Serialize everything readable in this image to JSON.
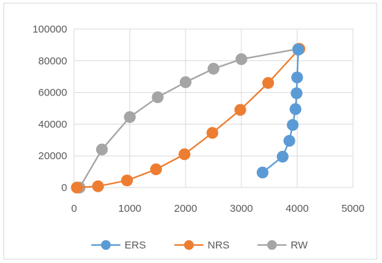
{
  "chart_data": {
    "type": "scatter",
    "title": "",
    "xlabel": "",
    "ylabel": "",
    "xlim": [
      0,
      5000
    ],
    "ylim": [
      0,
      100000
    ],
    "x_ticks": [
      0,
      1000,
      2000,
      3000,
      4000,
      5000
    ],
    "y_ticks": [
      0,
      20000,
      40000,
      60000,
      80000,
      100000
    ],
    "x_tick_labels": [
      "0",
      "1000",
      "2000",
      "3000",
      "4000",
      "5000"
    ],
    "y_tick_labels": [
      "0",
      "20000",
      "40000",
      "60000",
      "80000",
      "100000"
    ],
    "grid": true,
    "legend_position": "bottom",
    "series": [
      {
        "name": "ERS",
        "color": "#5b9bd5",
        "points": [
          {
            "x": 3380,
            "y": 9500
          },
          {
            "x": 3740,
            "y": 19500
          },
          {
            "x": 3860,
            "y": 29500
          },
          {
            "x": 3920,
            "y": 39500
          },
          {
            "x": 3970,
            "y": 49500
          },
          {
            "x": 3990,
            "y": 59500
          },
          {
            "x": 4000,
            "y": 69500
          },
          {
            "x": 4020,
            "y": 87000
          }
        ]
      },
      {
        "name": "NRS",
        "color": "#ed7d31",
        "points": [
          {
            "x": 50,
            "y": 0
          },
          {
            "x": 430,
            "y": 800
          },
          {
            "x": 950,
            "y": 4500
          },
          {
            "x": 1470,
            "y": 11500
          },
          {
            "x": 1980,
            "y": 21000
          },
          {
            "x": 2480,
            "y": 34500
          },
          {
            "x": 2980,
            "y": 49000
          },
          {
            "x": 3480,
            "y": 66000
          },
          {
            "x": 4040,
            "y": 87500
          }
        ]
      },
      {
        "name": "RW",
        "color": "#a5a5a5",
        "points": [
          {
            "x": 100,
            "y": 0
          },
          {
            "x": 500,
            "y": 24000
          },
          {
            "x": 1000,
            "y": 44500
          },
          {
            "x": 1500,
            "y": 57000
          },
          {
            "x": 2000,
            "y": 66500
          },
          {
            "x": 2500,
            "y": 75000
          },
          {
            "x": 3000,
            "y": 81000
          },
          {
            "x": 4020,
            "y": 87500
          }
        ]
      }
    ]
  }
}
